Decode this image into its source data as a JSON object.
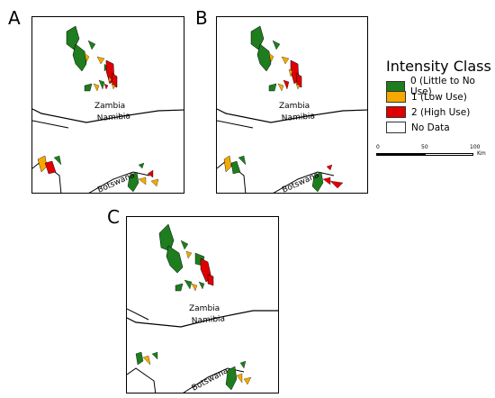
{
  "panels": [
    {
      "letter": "A"
    },
    {
      "letter": "B"
    },
    {
      "letter": "C"
    }
  ],
  "map_labels": {
    "zambia": "Zambia",
    "namibia": "Namibia",
    "botswana": "Botswana"
  },
  "legend": {
    "title": "Intensity Class",
    "items": [
      {
        "label": "0 (Little to No Use)",
        "color": "#1e7d1e"
      },
      {
        "label": "1 (Low Use)",
        "color": "#f5a800"
      },
      {
        "label": "2 (High Use)",
        "color": "#e00000"
      },
      {
        "label": "No Data",
        "color": "#ffffff"
      }
    ]
  },
  "scalebar": {
    "ticks": [
      "0",
      "50",
      "100"
    ],
    "unit": "Km"
  },
  "colors": {
    "border": "#000000",
    "green": "#1e7d1e",
    "orange": "#f5a800",
    "red": "#e00000"
  }
}
